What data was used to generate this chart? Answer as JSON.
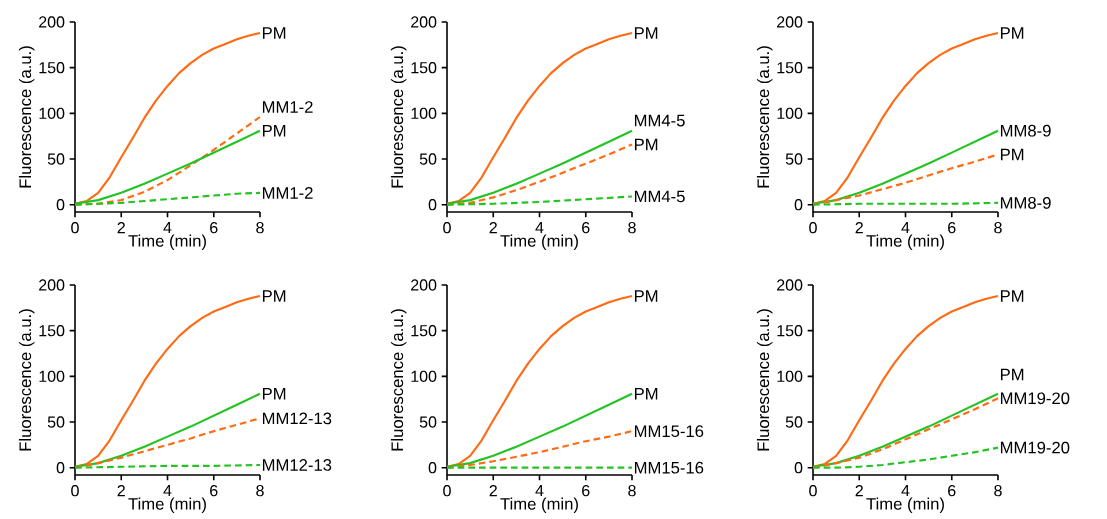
{
  "chart_data": [
    {
      "type": "line",
      "xlabel": "Time (min)",
      "ylabel": "Fluorescence (a.u.)",
      "xlim": [
        0,
        8
      ],
      "ylim": [
        -8,
        200
      ],
      "xticks": [
        0,
        2,
        4,
        6,
        8
      ],
      "yticks": [
        0,
        50,
        100,
        150,
        200
      ],
      "series": [
        {
          "name": "PM",
          "color": "#ff6a13",
          "line_style": "solid",
          "x": [
            0,
            0.5,
            1,
            1.5,
            2,
            2.5,
            3,
            3.5,
            4,
            4.5,
            5,
            5.5,
            6,
            6.5,
            7,
            7.5,
            8
          ],
          "values": [
            1,
            4,
            13,
            30,
            52,
            73,
            95,
            114,
            130,
            144,
            155,
            164,
            171,
            176,
            181,
            185,
            188
          ]
        },
        {
          "name": "MM1-2",
          "color": "#ff6a13",
          "line_style": "dashed",
          "x": [
            0,
            1,
            2,
            3,
            4,
            5,
            6,
            7,
            8
          ],
          "values": [
            0,
            1,
            5,
            14,
            27,
            43,
            60,
            78,
            96
          ]
        },
        {
          "name": "PM",
          "color": "#22c322",
          "line_style": "solid",
          "x": [
            0,
            1,
            2,
            3,
            4,
            5,
            6,
            7,
            8
          ],
          "values": [
            1,
            5,
            13,
            23,
            34,
            45,
            57,
            69,
            81
          ]
        },
        {
          "name": "MM1-2",
          "color": "#22c322",
          "line_style": "dashed",
          "x": [
            0,
            1,
            2,
            3,
            4,
            5,
            6,
            7,
            8
          ],
          "values": [
            0,
            1,
            2,
            4,
            6,
            8,
            10,
            12,
            13
          ]
        }
      ]
    },
    {
      "type": "line",
      "xlabel": "Time (min)",
      "ylabel": "Fluorescence (a.u.)",
      "xlim": [
        0,
        8
      ],
      "ylim": [
        -8,
        200
      ],
      "xticks": [
        0,
        2,
        4,
        6,
        8
      ],
      "yticks": [
        0,
        50,
        100,
        150,
        200
      ],
      "series": [
        {
          "name": "PM",
          "color": "#ff6a13",
          "line_style": "solid",
          "x": [
            0,
            0.5,
            1,
            1.5,
            2,
            2.5,
            3,
            3.5,
            4,
            4.5,
            5,
            5.5,
            6,
            6.5,
            7,
            7.5,
            8
          ],
          "values": [
            1,
            4,
            13,
            30,
            52,
            73,
            95,
            114,
            130,
            144,
            155,
            164,
            171,
            176,
            181,
            185,
            188
          ]
        },
        {
          "name": "MM4-5",
          "color": "#22c322",
          "line_style": "solid",
          "x": [
            0,
            1,
            2,
            3,
            4,
            5,
            6,
            7,
            8
          ],
          "values": [
            1,
            5,
            13,
            23,
            34,
            45,
            57,
            69,
            81
          ]
        },
        {
          "name": "PM",
          "color": "#ff6a13",
          "line_style": "dashed",
          "x": [
            0,
            1,
            2,
            3,
            4,
            5,
            6,
            7,
            8
          ],
          "values": [
            0,
            2,
            8,
            16,
            25,
            35,
            45,
            55,
            66
          ]
        },
        {
          "name": "MM4-5",
          "color": "#22c322",
          "line_style": "dashed",
          "x": [
            0,
            2,
            4,
            6,
            8
          ],
          "values": [
            0,
            1,
            3,
            6,
            9
          ]
        }
      ]
    },
    {
      "type": "line",
      "xlabel": "Time (min)",
      "ylabel": "Fluorescence (a.u.)",
      "xlim": [
        0,
        8
      ],
      "ylim": [
        -8,
        200
      ],
      "xticks": [
        0,
        2,
        4,
        6,
        8
      ],
      "yticks": [
        0,
        50,
        100,
        150,
        200
      ],
      "series": [
        {
          "name": "PM",
          "color": "#ff6a13",
          "line_style": "solid",
          "x": [
            0,
            0.5,
            1,
            1.5,
            2,
            2.5,
            3,
            3.5,
            4,
            4.5,
            5,
            5.5,
            6,
            6.5,
            7,
            7.5,
            8
          ],
          "values": [
            1,
            4,
            13,
            30,
            52,
            73,
            95,
            114,
            130,
            144,
            155,
            164,
            171,
            176,
            181,
            185,
            188
          ]
        },
        {
          "name": "MM8-9",
          "color": "#22c322",
          "line_style": "solid",
          "x": [
            0,
            1,
            2,
            3,
            4,
            5,
            6,
            7,
            8
          ],
          "values": [
            1,
            5,
            13,
            23,
            34,
            45,
            57,
            69,
            81
          ]
        },
        {
          "name": "PM",
          "color": "#ff6a13",
          "line_style": "dashed",
          "x": [
            0,
            1,
            2,
            3,
            4,
            5,
            6,
            7,
            8
          ],
          "values": [
            0,
            5,
            10,
            17,
            24,
            32,
            40,
            47,
            55
          ]
        },
        {
          "name": "MM8-9",
          "color": "#22c322",
          "line_style": "dashed",
          "x": [
            0,
            2,
            4,
            6,
            8
          ],
          "values": [
            0,
            1,
            1,
            1,
            2
          ]
        }
      ]
    },
    {
      "type": "line",
      "xlabel": "Time (min)",
      "ylabel": "Fluorescence (a.u.)",
      "xlim": [
        0,
        8
      ],
      "ylim": [
        -8,
        200
      ],
      "xticks": [
        0,
        2,
        4,
        6,
        8
      ],
      "yticks": [
        0,
        50,
        100,
        150,
        200
      ],
      "series": [
        {
          "name": "PM",
          "color": "#ff6a13",
          "line_style": "solid",
          "x": [
            0,
            0.5,
            1,
            1.5,
            2,
            2.5,
            3,
            3.5,
            4,
            4.5,
            5,
            5.5,
            6,
            6.5,
            7,
            7.5,
            8
          ],
          "values": [
            1,
            4,
            13,
            30,
            52,
            73,
            95,
            114,
            130,
            144,
            155,
            164,
            171,
            176,
            181,
            185,
            188
          ]
        },
        {
          "name": "PM",
          "color": "#22c322",
          "line_style": "solid",
          "x": [
            0,
            1,
            2,
            3,
            4,
            5,
            6,
            7,
            8
          ],
          "values": [
            1,
            5,
            13,
            23,
            34,
            45,
            57,
            69,
            81
          ]
        },
        {
          "name": "MM12-13",
          "color": "#ff6a13",
          "line_style": "dashed",
          "x": [
            0,
            1,
            2,
            3,
            4,
            5,
            6,
            7,
            8
          ],
          "values": [
            0,
            5,
            11,
            18,
            25,
            32,
            40,
            47,
            54
          ]
        },
        {
          "name": "MM12-13",
          "color": "#22c322",
          "line_style": "dashed",
          "x": [
            0,
            2,
            4,
            6,
            8
          ],
          "values": [
            0,
            1,
            2,
            2,
            3
          ]
        }
      ]
    },
    {
      "type": "line",
      "xlabel": "Time (min)",
      "ylabel": "Fluorescence (a.u.)",
      "xlim": [
        0,
        8
      ],
      "ylim": [
        -8,
        200
      ],
      "xticks": [
        0,
        2,
        4,
        6,
        8
      ],
      "yticks": [
        0,
        50,
        100,
        150,
        200
      ],
      "series": [
        {
          "name": "PM",
          "color": "#ff6a13",
          "line_style": "solid",
          "x": [
            0,
            0.5,
            1,
            1.5,
            2,
            2.5,
            3,
            3.5,
            4,
            4.5,
            5,
            5.5,
            6,
            6.5,
            7,
            7.5,
            8
          ],
          "values": [
            1,
            4,
            13,
            30,
            52,
            73,
            95,
            114,
            130,
            144,
            155,
            164,
            171,
            176,
            181,
            185,
            188
          ]
        },
        {
          "name": "PM",
          "color": "#22c322",
          "line_style": "solid",
          "x": [
            0,
            1,
            2,
            3,
            4,
            5,
            6,
            7,
            8
          ],
          "values": [
            1,
            5,
            13,
            23,
            34,
            45,
            57,
            69,
            81
          ]
        },
        {
          "name": "MM15-16",
          "color": "#ff6a13",
          "line_style": "dashed",
          "x": [
            0,
            1,
            2,
            3,
            4,
            5,
            6,
            7,
            8
          ],
          "values": [
            0,
            3,
            7,
            12,
            17,
            23,
            29,
            34,
            40
          ]
        },
        {
          "name": "MM15-16",
          "color": "#22c322",
          "line_style": "dashed",
          "x": [
            0,
            4,
            8
          ],
          "values": [
            0,
            0,
            0
          ]
        }
      ]
    },
    {
      "type": "line",
      "xlabel": "Time (min)",
      "ylabel": "Fluorescence (a.u.)",
      "xlim": [
        0,
        8
      ],
      "ylim": [
        -8,
        200
      ],
      "xticks": [
        0,
        2,
        4,
        6,
        8
      ],
      "yticks": [
        0,
        50,
        100,
        150,
        200
      ],
      "series": [
        {
          "name": "PM",
          "color": "#ff6a13",
          "line_style": "solid",
          "x": [
            0,
            0.5,
            1,
            1.5,
            2,
            2.5,
            3,
            3.5,
            4,
            4.5,
            5,
            5.5,
            6,
            6.5,
            7,
            7.5,
            8
          ],
          "values": [
            1,
            4,
            13,
            30,
            52,
            73,
            95,
            114,
            130,
            144,
            155,
            164,
            171,
            176,
            181,
            185,
            188
          ]
        },
        {
          "name": "PM",
          "color": "#22c322",
          "line_style": "solid",
          "x": [
            0,
            1,
            2,
            3,
            4,
            5,
            6,
            7,
            8
          ],
          "values": [
            1,
            5,
            13,
            23,
            34,
            45,
            57,
            69,
            81
          ]
        },
        {
          "name": "MM19-20",
          "color": "#ff6a13",
          "line_style": "dashed",
          "x": [
            0,
            1,
            2,
            3,
            4,
            5,
            6,
            7,
            8
          ],
          "values": [
            0,
            5,
            11,
            20,
            31,
            42,
            53,
            64,
            76
          ]
        },
        {
          "name": "MM19-20",
          "color": "#22c322",
          "line_style": "dashed",
          "x": [
            0,
            1,
            2,
            3,
            4,
            5,
            6,
            7,
            8
          ],
          "values": [
            0,
            0,
            1,
            3,
            6,
            9,
            13,
            17,
            22
          ]
        }
      ]
    }
  ]
}
